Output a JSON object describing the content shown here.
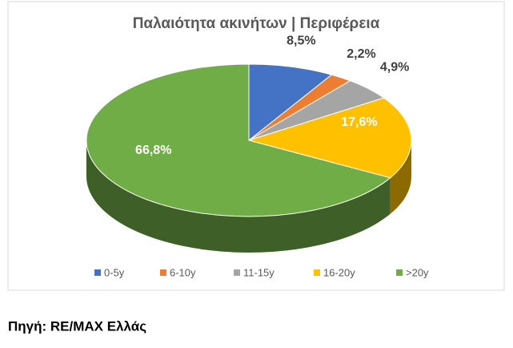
{
  "chart_data": {
    "type": "pie3d",
    "title": "Παλαιότητα ακινήτων | Περιφέρεια",
    "categories": [
      "0-5y",
      "6-10y",
      "11-15y",
      "16-20y",
      ">20y"
    ],
    "values": [
      8.5,
      2.2,
      4.9,
      17.6,
      66.8
    ],
    "value_labels": [
      "8,5%",
      "2,2%",
      "4,9%",
      "17,6%",
      "66,8%"
    ],
    "colors": [
      "#4472c4",
      "#ed7d31",
      "#a5a5a5",
      "#ffc000",
      "#70ad47"
    ],
    "legend": "bottom",
    "source": "Πηγή: RE/MAX Ελλάς"
  }
}
